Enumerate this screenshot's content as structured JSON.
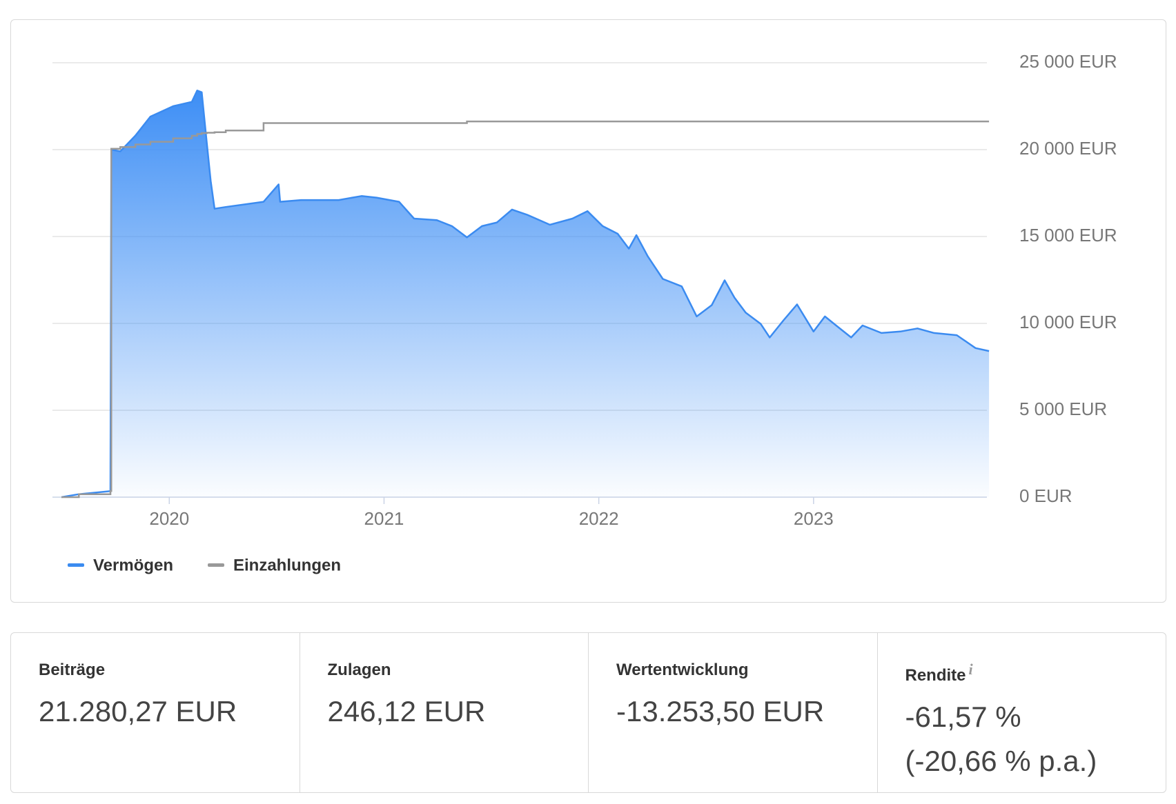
{
  "chart_data": {
    "type": "area",
    "x": [
      2019.498,
      2019.579,
      2019.726,
      2019.73,
      2019.772,
      2019.842,
      2019.912,
      2020.018,
      2020.105,
      2020.13,
      2020.151,
      2020.175,
      2020.193,
      2020.211,
      2020.263,
      2020.439,
      2020.509,
      2020.516,
      2020.614,
      2020.789,
      2020.895,
      2020.965,
      2021.07,
      2021.14,
      2021.246,
      2021.316,
      2021.386,
      2021.456,
      2021.526,
      2021.596,
      2021.667,
      2021.772,
      2021.877,
      2021.947,
      2022.018,
      2022.088,
      2022.14,
      2022.175,
      2022.228,
      2022.298,
      2022.386,
      2022.456,
      2022.526,
      2022.586,
      2022.632,
      2022.684,
      2022.754,
      2022.796,
      2022.86,
      2022.923,
      2023.0,
      2023.053,
      2023.105,
      2023.175,
      2023.228,
      2023.316,
      2023.404,
      2023.484,
      2023.561,
      2023.667,
      2023.754,
      2023.817
    ],
    "series": [
      {
        "name": "Vermögen",
        "color": "#3b8bf0",
        "values": [
          0,
          170,
          350,
          20000,
          19900,
          20800,
          21900,
          22500,
          22750,
          23400,
          23300,
          20360,
          18200,
          16600,
          16700,
          17000,
          18000,
          17000,
          17100,
          17100,
          17330,
          17240,
          17000,
          16030,
          15940,
          15600,
          14950,
          15600,
          15810,
          16550,
          16250,
          15680,
          16030,
          16460,
          15600,
          15160,
          14300,
          15080,
          13860,
          12560,
          12130,
          10400,
          11050,
          12480,
          11480,
          10620,
          9970,
          9190,
          10180,
          11090,
          9530,
          10400,
          9880,
          9190,
          9880,
          9450,
          9530,
          9710,
          9450,
          9320,
          8580,
          8410
        ]
      },
      {
        "name": "Einzahlungen",
        "color": "#999999",
        "values": [
          0,
          170,
          350,
          20050,
          20150,
          20300,
          20450,
          20650,
          20800,
          20900,
          20950,
          20970,
          20970,
          21000,
          21100,
          21530,
          21530,
          21530,
          21530,
          21530,
          21530,
          21530,
          21530,
          21530,
          21530,
          21530,
          21620,
          21620,
          21620,
          21620,
          21620,
          21620,
          21620,
          21620,
          21620,
          21620,
          21620,
          21620,
          21620,
          21620,
          21620,
          21620,
          21620,
          21620,
          21620,
          21620,
          21620,
          21620,
          21620,
          21620,
          21620,
          21620,
          21620,
          21620,
          21620,
          21620,
          21620,
          21620,
          21620,
          21620,
          21620,
          21620
        ]
      }
    ],
    "xlim": [
      2019.456,
      2023.82
    ],
    "xticks": [
      2020,
      2021,
      2022,
      2023
    ],
    "ylim": [
      0,
      25000
    ],
    "yticks": [
      {
        "value": 0,
        "label": "0 EUR"
      },
      {
        "value": 5000,
        "label": "5 000 EUR"
      },
      {
        "value": 10000,
        "label": "10 000 EUR"
      },
      {
        "value": 15000,
        "label": "15 000 EUR"
      },
      {
        "value": 20000,
        "label": "20 000 EUR"
      },
      {
        "value": 25000,
        "label": "25 000 EUR"
      }
    ],
    "grid": true,
    "legend": "bottom-left"
  },
  "stats": [
    {
      "label": "Beiträge",
      "value": "21.280,27 EUR"
    },
    {
      "label": "Zulagen",
      "value": "246,12 EUR"
    },
    {
      "label": "Wertentwicklung",
      "value": "-13.253,50 EUR"
    },
    {
      "label": "Rendite",
      "info": "i",
      "value": "-61,57 %",
      "value2": "(-20,66 % p.a.)"
    }
  ]
}
